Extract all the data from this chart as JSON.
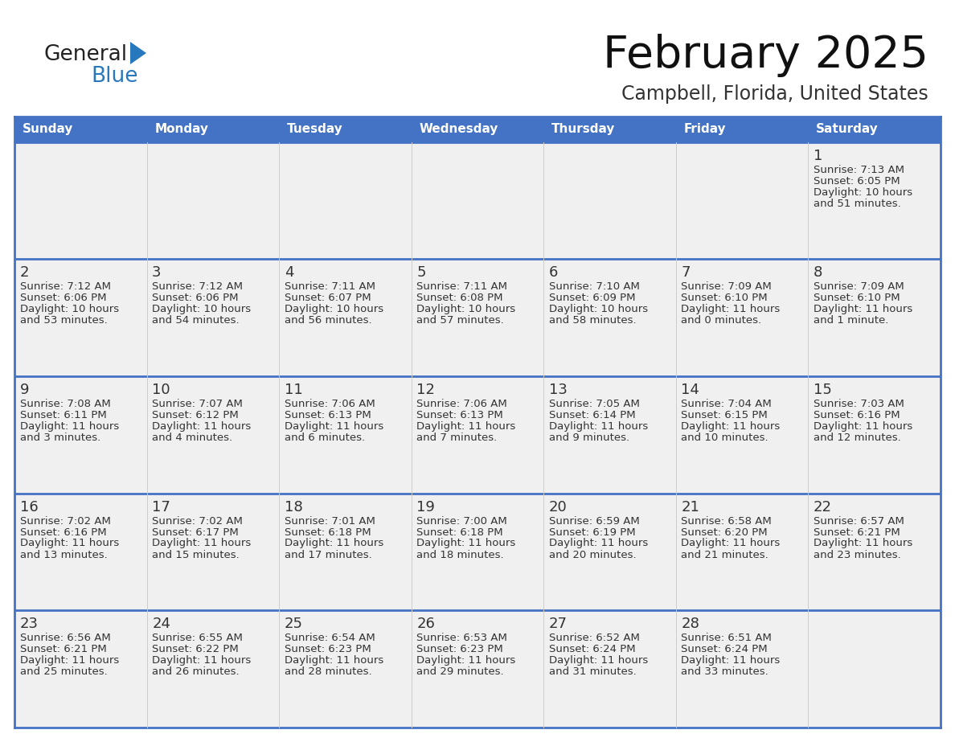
{
  "title": "February 2025",
  "subtitle": "Campbell, Florida, United States",
  "header_bg": "#4472C4",
  "header_text_color": "#FFFFFF",
  "cell_bg": "#F0F0F0",
  "day_names": [
    "Sunday",
    "Monday",
    "Tuesday",
    "Wednesday",
    "Thursday",
    "Friday",
    "Saturday"
  ],
  "grid_line_color": "#4472C4",
  "day_number_color": "#333333",
  "info_text_color": "#333333",
  "logo_general_color": "#222222",
  "logo_blue_color": "#2878BE",
  "weeks": [
    [
      {
        "day": null,
        "sunrise": null,
        "sunset": null,
        "daylight": null
      },
      {
        "day": null,
        "sunrise": null,
        "sunset": null,
        "daylight": null
      },
      {
        "day": null,
        "sunrise": null,
        "sunset": null,
        "daylight": null
      },
      {
        "day": null,
        "sunrise": null,
        "sunset": null,
        "daylight": null
      },
      {
        "day": null,
        "sunrise": null,
        "sunset": null,
        "daylight": null
      },
      {
        "day": null,
        "sunrise": null,
        "sunset": null,
        "daylight": null
      },
      {
        "day": 1,
        "sunrise": "7:13 AM",
        "sunset": "6:05 PM",
        "daylight": "10 hours\nand 51 minutes."
      }
    ],
    [
      {
        "day": 2,
        "sunrise": "7:12 AM",
        "sunset": "6:06 PM",
        "daylight": "10 hours\nand 53 minutes."
      },
      {
        "day": 3,
        "sunrise": "7:12 AM",
        "sunset": "6:06 PM",
        "daylight": "10 hours\nand 54 minutes."
      },
      {
        "day": 4,
        "sunrise": "7:11 AM",
        "sunset": "6:07 PM",
        "daylight": "10 hours\nand 56 minutes."
      },
      {
        "day": 5,
        "sunrise": "7:11 AM",
        "sunset": "6:08 PM",
        "daylight": "10 hours\nand 57 minutes."
      },
      {
        "day": 6,
        "sunrise": "7:10 AM",
        "sunset": "6:09 PM",
        "daylight": "10 hours\nand 58 minutes."
      },
      {
        "day": 7,
        "sunrise": "7:09 AM",
        "sunset": "6:10 PM",
        "daylight": "11 hours\nand 0 minutes."
      },
      {
        "day": 8,
        "sunrise": "7:09 AM",
        "sunset": "6:10 PM",
        "daylight": "11 hours\nand 1 minute."
      }
    ],
    [
      {
        "day": 9,
        "sunrise": "7:08 AM",
        "sunset": "6:11 PM",
        "daylight": "11 hours\nand 3 minutes."
      },
      {
        "day": 10,
        "sunrise": "7:07 AM",
        "sunset": "6:12 PM",
        "daylight": "11 hours\nand 4 minutes."
      },
      {
        "day": 11,
        "sunrise": "7:06 AM",
        "sunset": "6:13 PM",
        "daylight": "11 hours\nand 6 minutes."
      },
      {
        "day": 12,
        "sunrise": "7:06 AM",
        "sunset": "6:13 PM",
        "daylight": "11 hours\nand 7 minutes."
      },
      {
        "day": 13,
        "sunrise": "7:05 AM",
        "sunset": "6:14 PM",
        "daylight": "11 hours\nand 9 minutes."
      },
      {
        "day": 14,
        "sunrise": "7:04 AM",
        "sunset": "6:15 PM",
        "daylight": "11 hours\nand 10 minutes."
      },
      {
        "day": 15,
        "sunrise": "7:03 AM",
        "sunset": "6:16 PM",
        "daylight": "11 hours\nand 12 minutes."
      }
    ],
    [
      {
        "day": 16,
        "sunrise": "7:02 AM",
        "sunset": "6:16 PM",
        "daylight": "11 hours\nand 13 minutes."
      },
      {
        "day": 17,
        "sunrise": "7:02 AM",
        "sunset": "6:17 PM",
        "daylight": "11 hours\nand 15 minutes."
      },
      {
        "day": 18,
        "sunrise": "7:01 AM",
        "sunset": "6:18 PM",
        "daylight": "11 hours\nand 17 minutes."
      },
      {
        "day": 19,
        "sunrise": "7:00 AM",
        "sunset": "6:18 PM",
        "daylight": "11 hours\nand 18 minutes."
      },
      {
        "day": 20,
        "sunrise": "6:59 AM",
        "sunset": "6:19 PM",
        "daylight": "11 hours\nand 20 minutes."
      },
      {
        "day": 21,
        "sunrise": "6:58 AM",
        "sunset": "6:20 PM",
        "daylight": "11 hours\nand 21 minutes."
      },
      {
        "day": 22,
        "sunrise": "6:57 AM",
        "sunset": "6:21 PM",
        "daylight": "11 hours\nand 23 minutes."
      }
    ],
    [
      {
        "day": 23,
        "sunrise": "6:56 AM",
        "sunset": "6:21 PM",
        "daylight": "11 hours\nand 25 minutes."
      },
      {
        "day": 24,
        "sunrise": "6:55 AM",
        "sunset": "6:22 PM",
        "daylight": "11 hours\nand 26 minutes."
      },
      {
        "day": 25,
        "sunrise": "6:54 AM",
        "sunset": "6:23 PM",
        "daylight": "11 hours\nand 28 minutes."
      },
      {
        "day": 26,
        "sunrise": "6:53 AM",
        "sunset": "6:23 PM",
        "daylight": "11 hours\nand 29 minutes."
      },
      {
        "day": 27,
        "sunrise": "6:52 AM",
        "sunset": "6:24 PM",
        "daylight": "11 hours\nand 31 minutes."
      },
      {
        "day": 28,
        "sunrise": "6:51 AM",
        "sunset": "6:24 PM",
        "daylight": "11 hours\nand 33 minutes."
      },
      {
        "day": null,
        "sunrise": null,
        "sunset": null,
        "daylight": null
      }
    ]
  ]
}
